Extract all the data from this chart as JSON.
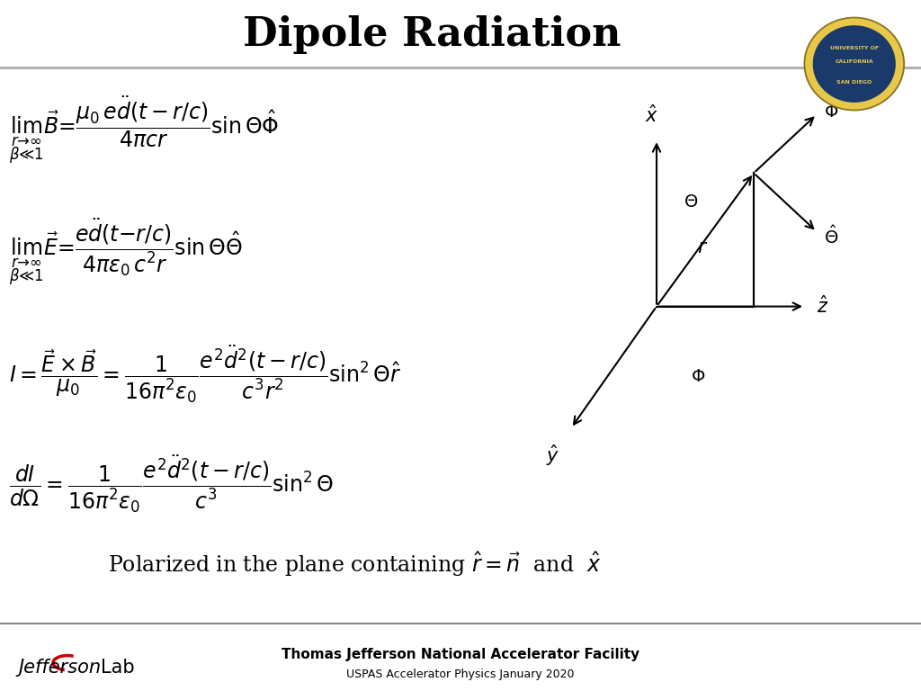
{
  "title": "Dipole Radiation",
  "title_fontsize": 32,
  "title_fontweight": "bold",
  "content_bg": "#ffffff",
  "footer_bg": "#c8c8c8",
  "footer_text1": "Thomas Jefferson National Accelerator Facility",
  "footer_text2": "USPAS Accelerator Physics January 2020",
  "sep_line_color": "#aaaaaa",
  "arrow_color": "black",
  "text_color": "black"
}
